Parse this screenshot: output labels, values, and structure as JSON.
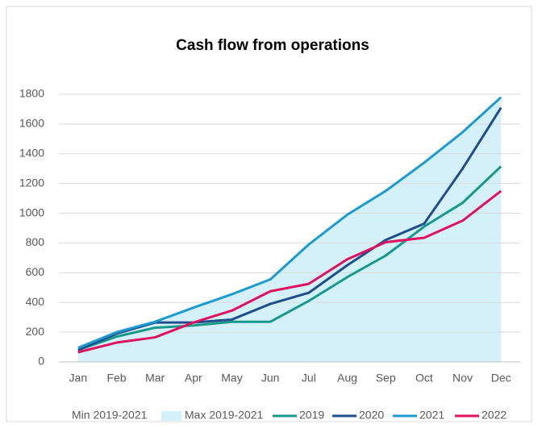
{
  "chart_data": {
    "type": "line",
    "title": "Cash flow from operations",
    "categories": [
      "Jan",
      "Feb",
      "Mar",
      "Apr",
      "May",
      "Jun",
      "Jul",
      "Aug",
      "Sep",
      "Oct",
      "Nov",
      "Dec"
    ],
    "ylim": [
      0,
      1800
    ],
    "yticks": [
      0,
      200,
      400,
      600,
      800,
      1000,
      1200,
      1400,
      1600,
      1800
    ],
    "grid": true,
    "legend": "bottom",
    "series": [
      {
        "name": "Min 2019-2021",
        "type": "area",
        "color": "#ffffff",
        "values": [
          80,
          170,
          230,
          245,
          270,
          270,
          410,
          570,
          715,
          910,
          1070,
          1315
        ]
      },
      {
        "name": "Max 2019-2021",
        "type": "area",
        "color": "#d4f1f9",
        "values": [
          95,
          200,
          270,
          365,
          455,
          555,
          790,
          990,
          1150,
          1340,
          1545,
          1780
        ]
      },
      {
        "name": "2019",
        "type": "line",
        "color": "#17998a",
        "values": [
          80,
          170,
          230,
          245,
          270,
          270,
          410,
          570,
          715,
          910,
          1070,
          1315
        ]
      },
      {
        "name": "2020",
        "type": "line",
        "color": "#1f4e8c",
        "values": [
          80,
          190,
          265,
          265,
          285,
          390,
          465,
          650,
          820,
          930,
          1300,
          1710
        ]
      },
      {
        "name": "2021",
        "type": "line",
        "color": "#1d9bd1",
        "values": [
          95,
          200,
          270,
          365,
          455,
          555,
          790,
          990,
          1150,
          1340,
          1545,
          1780
        ]
      },
      {
        "name": "2022",
        "type": "line",
        "color": "#e0115f",
        "values": [
          65,
          130,
          165,
          265,
          345,
          475,
          525,
          690,
          805,
          835,
          950,
          1150
        ]
      }
    ]
  }
}
